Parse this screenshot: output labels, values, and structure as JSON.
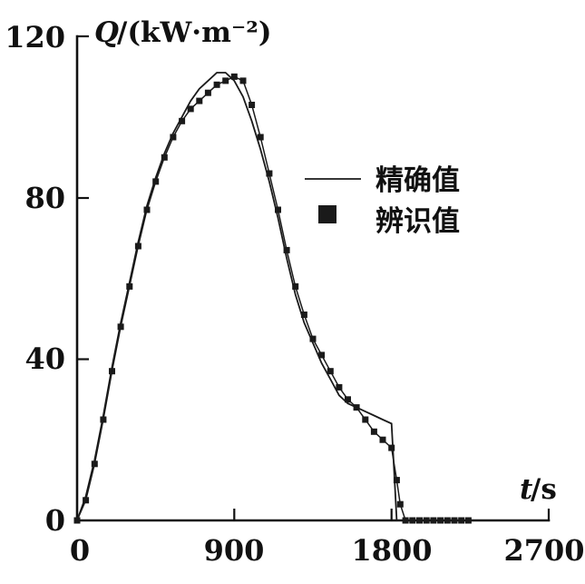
{
  "chart_data": {
    "type": "line",
    "title": "",
    "ylabel_var": "Q",
    "ylabel_rest": "/(kW·m⁻²)",
    "xlabel_var": "t",
    "xlabel_rest": "/s",
    "x_ticks": [
      "0",
      "900",
      "1800",
      "2700"
    ],
    "y_ticks": [
      "0",
      "40",
      "80",
      "120"
    ],
    "xlim": [
      0,
      2700
    ],
    "ylim": [
      0,
      120
    ],
    "grid": false,
    "legend_position": "center-right, inside plot",
    "color": "#1a1a1a",
    "series": [
      {
        "name": "精确值",
        "key": "exact-curve",
        "style": "line",
        "points": [
          [
            0,
            0
          ],
          [
            50,
            6
          ],
          [
            100,
            15
          ],
          [
            150,
            26
          ],
          [
            200,
            38
          ],
          [
            250,
            49
          ],
          [
            300,
            59
          ],
          [
            350,
            69
          ],
          [
            400,
            78
          ],
          [
            450,
            85
          ],
          [
            500,
            91
          ],
          [
            550,
            96
          ],
          [
            600,
            100
          ],
          [
            650,
            104
          ],
          [
            700,
            107
          ],
          [
            750,
            109
          ],
          [
            800,
            111
          ],
          [
            850,
            111
          ],
          [
            900,
            109
          ],
          [
            950,
            105
          ],
          [
            1000,
            99
          ],
          [
            1050,
            92
          ],
          [
            1100,
            84
          ],
          [
            1150,
            75
          ],
          [
            1200,
            65
          ],
          [
            1250,
            56
          ],
          [
            1300,
            49
          ],
          [
            1350,
            44
          ],
          [
            1400,
            39
          ],
          [
            1450,
            35
          ],
          [
            1500,
            31
          ],
          [
            1550,
            29
          ],
          [
            1600,
            28
          ],
          [
            1650,
            27
          ],
          [
            1700,
            26
          ],
          [
            1750,
            25
          ],
          [
            1800,
            24
          ],
          [
            1815,
            12
          ],
          [
            1830,
            0
          ],
          [
            1870,
            0
          ]
        ]
      },
      {
        "name": "辨识值",
        "key": "identified-curve",
        "style": "line+squares",
        "points": [
          [
            0,
            0
          ],
          [
            50,
            5
          ],
          [
            100,
            14
          ],
          [
            150,
            25
          ],
          [
            200,
            37
          ],
          [
            250,
            48
          ],
          [
            300,
            58
          ],
          [
            350,
            68
          ],
          [
            400,
            77
          ],
          [
            450,
            84
          ],
          [
            500,
            90
          ],
          [
            550,
            95
          ],
          [
            600,
            99
          ],
          [
            650,
            102
          ],
          [
            700,
            104
          ],
          [
            750,
            106
          ],
          [
            800,
            108
          ],
          [
            850,
            109
          ],
          [
            900,
            110
          ],
          [
            950,
            109
          ],
          [
            1000,
            103
          ],
          [
            1050,
            95
          ],
          [
            1100,
            86
          ],
          [
            1150,
            77
          ],
          [
            1200,
            67
          ],
          [
            1250,
            58
          ],
          [
            1300,
            51
          ],
          [
            1350,
            45
          ],
          [
            1400,
            41
          ],
          [
            1450,
            37
          ],
          [
            1500,
            33
          ],
          [
            1550,
            30
          ],
          [
            1600,
            28
          ],
          [
            1650,
            25
          ],
          [
            1700,
            22
          ],
          [
            1750,
            20
          ],
          [
            1800,
            18
          ],
          [
            1830,
            10
          ],
          [
            1850,
            4
          ],
          [
            1880,
            0
          ],
          [
            1920,
            0
          ],
          [
            1960,
            0
          ],
          [
            2000,
            0
          ],
          [
            2040,
            0
          ],
          [
            2080,
            0
          ],
          [
            2120,
            0
          ],
          [
            2160,
            0
          ],
          [
            2200,
            0
          ],
          [
            2240,
            0
          ]
        ]
      }
    ]
  }
}
